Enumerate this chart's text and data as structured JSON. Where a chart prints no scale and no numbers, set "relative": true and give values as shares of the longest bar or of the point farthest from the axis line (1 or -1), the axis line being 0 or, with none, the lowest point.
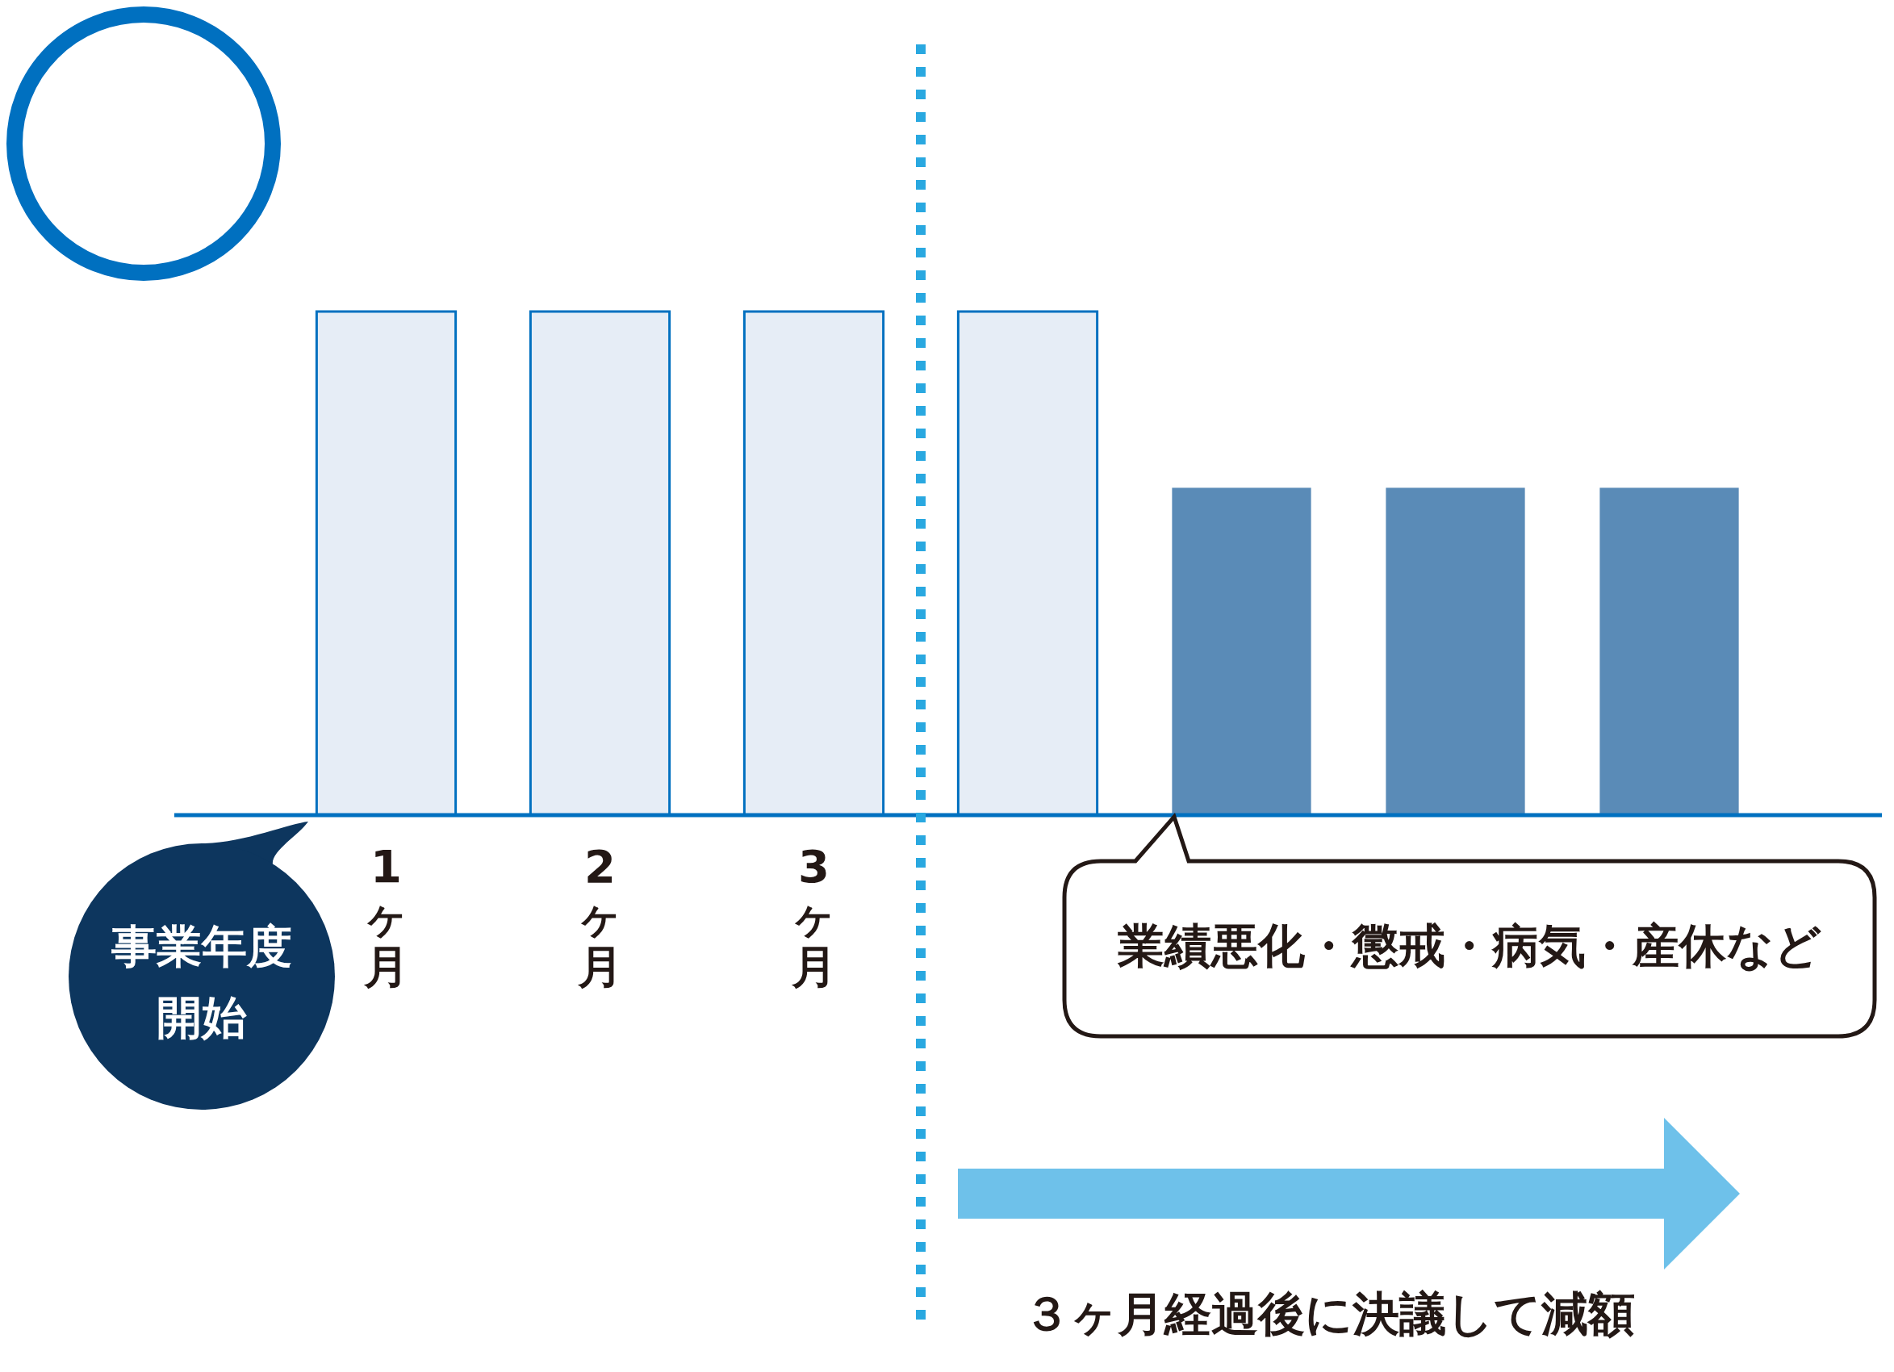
{
  "chart_data": {
    "type": "bar",
    "relative": true,
    "categories": [
      "1ヶ月",
      "2ヶ月",
      "3ヶ月",
      null,
      null,
      null,
      null
    ],
    "values": [
      1,
      1,
      1,
      1,
      0.65,
      0.65,
      0.65
    ],
    "colors": [
      "#e6edf6",
      "#e6edf6",
      "#e6edf6",
      "#e6edf6",
      "#5a8bb7",
      "#5a8bb7",
      "#5a8bb7"
    ],
    "annotations": [
      "事業年度開始",
      "業績悪化・懲戒・病気・産休など",
      "３ヶ月経過後に決議して減額"
    ]
  }
}
